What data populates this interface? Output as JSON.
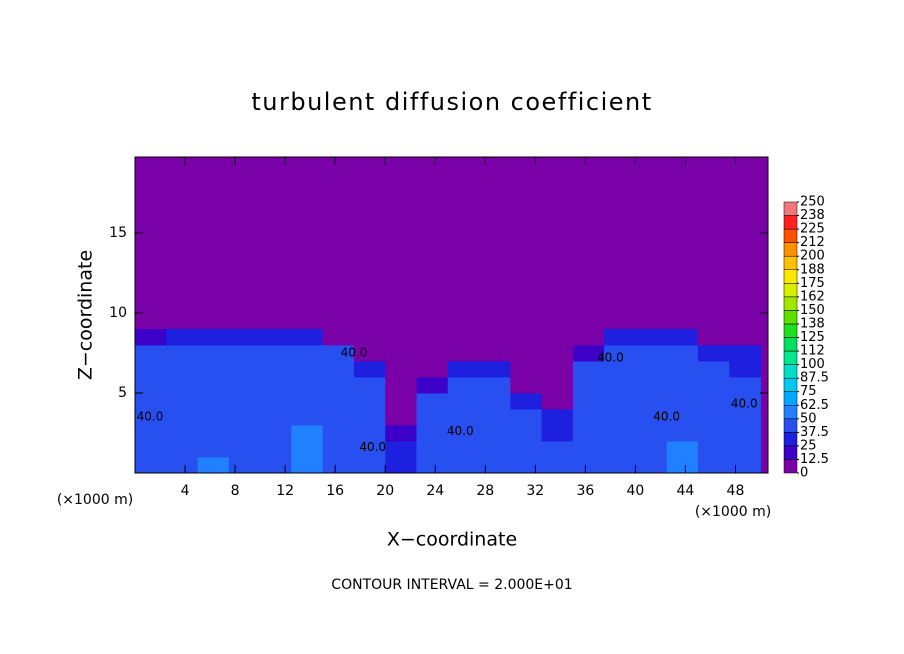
{
  "chart_data": {
    "type": "heatmap",
    "title": "turbulent diffusion coefficient",
    "xlabel": "X−coordinate",
    "ylabel": "Z−coordinate",
    "xunit_left": "(×1000 m)",
    "xunit_right": "(×1000 m)",
    "footnote": "CONTOUR INTERVAL = 2.000E+01",
    "xlim": [
      0,
      50.6
    ],
    "ylim": [
      0,
      19.75
    ],
    "xticks": [
      4,
      8,
      12,
      16,
      20,
      24,
      28,
      32,
      36,
      40,
      44,
      48
    ],
    "yticks": [
      5,
      10,
      15
    ],
    "xbins": [
      0,
      2.5,
      5,
      7.5,
      10,
      12.5,
      15,
      17.5,
      20,
      22.5,
      25,
      27.5,
      30,
      32.5,
      35,
      37.5,
      40,
      42.5,
      45,
      47.5,
      50
    ],
    "ybins": [
      0,
      1,
      2,
      3,
      4,
      5,
      6,
      7,
      8,
      9
    ],
    "z": [
      [
        45,
        42,
        55,
        40,
        42,
        60,
        45,
        42,
        35,
        40,
        42,
        40,
        38,
        40,
        42,
        45,
        42,
        55,
        48,
        45
      ],
      [
        40,
        40,
        48,
        38,
        40,
        55,
        42,
        40,
        30,
        40,
        40,
        38,
        38,
        38,
        40,
        42,
        40,
        50,
        45,
        42
      ],
      [
        38,
        40,
        45,
        40,
        42,
        50,
        40,
        42,
        15,
        38,
        42,
        40,
        40,
        35,
        40,
        40,
        40,
        45,
        42,
        40
      ],
      [
        38,
        38,
        42,
        42,
        40,
        48,
        40,
        40,
        0,
        40,
        40,
        42,
        38,
        30,
        38,
        40,
        40,
        42,
        40,
        40
      ],
      [
        40,
        38,
        40,
        40,
        38,
        45,
        38,
        40,
        0,
        38,
        42,
        38,
        25,
        10,
        40,
        38,
        40,
        42,
        40,
        38
      ],
      [
        38,
        40,
        42,
        38,
        40,
        42,
        40,
        38,
        0,
        20,
        40,
        40,
        0,
        0,
        40,
        40,
        38,
        40,
        40,
        40
      ],
      [
        40,
        38,
        40,
        40,
        38,
        40,
        40,
        25,
        0,
        0,
        35,
        25,
        0,
        0,
        40,
        38,
        40,
        42,
        38,
        35
      ],
      [
        38,
        40,
        42,
        38,
        40,
        42,
        38,
        0,
        0,
        0,
        0,
        0,
        0,
        0,
        20,
        40,
        38,
        40,
        30,
        25
      ],
      [
        15,
        25,
        30,
        25,
        28,
        28,
        0,
        0,
        0,
        0,
        0,
        0,
        0,
        0,
        0,
        25,
        30,
        25,
        0,
        0
      ]
    ],
    "colorbar_ticks": [
      0,
      12.5,
      25,
      37.5,
      50,
      62.5,
      75,
      87.5,
      100,
      {
        "value": 112.5,
        "label": "112"
      },
      125,
      {
        "value": 137.5,
        "label": "138"
      },
      150,
      {
        "value": 162.5,
        "label": "162"
      },
      175,
      {
        "value": 187.5,
        "label": "188"
      },
      200,
      {
        "value": 212.5,
        "label": "212"
      },
      225,
      {
        "value": 237.5,
        "label": "238"
      },
      250
    ],
    "colors": [
      "#7a00a8",
      "#3c00c8",
      "#1e20e0",
      "#2850f0",
      "#2080ff",
      "#00a8ff",
      "#00c8f0",
      "#00e0c8",
      "#00e890",
      "#00e060",
      "#20e020",
      "#60e000",
      "#a0e800",
      "#d8f000",
      "#ffe800",
      "#ffc000",
      "#ff9000",
      "#ff5000",
      "#ff2020",
      "#f07878"
    ],
    "annotations": [
      {
        "text": "40.0",
        "x": 17.5,
        "y": 7.5
      },
      {
        "text": "40.0",
        "x": 1.2,
        "y": 3.5
      },
      {
        "text": "40.0",
        "x": 19,
        "y": 1.6
      },
      {
        "text": "40.0",
        "x": 26,
        "y": 2.6
      },
      {
        "text": "40.0",
        "x": 38,
        "y": 7.2
      },
      {
        "text": "40.0",
        "x": 42.5,
        "y": 3.5
      },
      {
        "text": "40.0",
        "x": 48.7,
        "y": 4.3
      }
    ]
  }
}
